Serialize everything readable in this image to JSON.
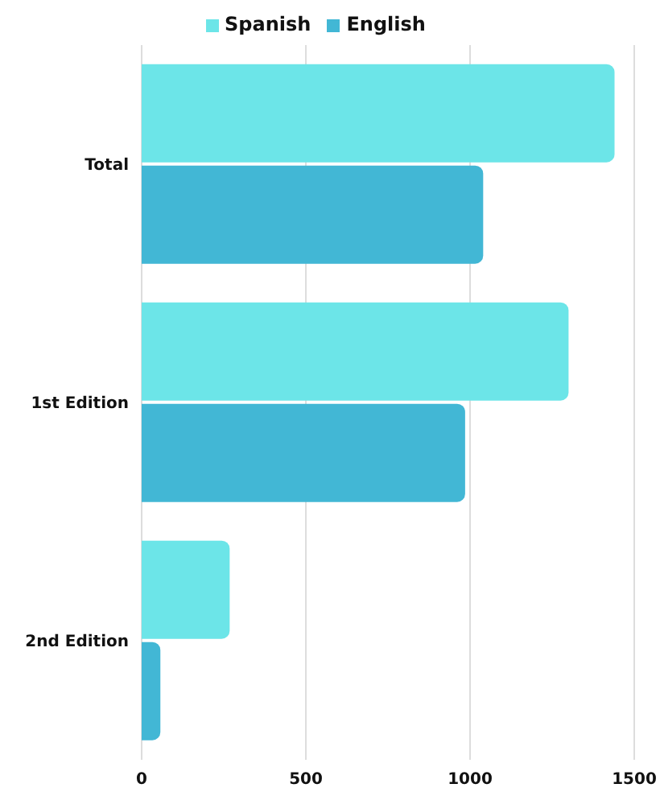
{
  "chart_data": {
    "type": "bar",
    "orientation": "horizontal",
    "categories": [
      "Total",
      "1st Edition",
      "2nd Edition"
    ],
    "series": [
      {
        "name": "Spanish",
        "color": "#6ce5e8",
        "values": [
          1440,
          1300,
          268
        ]
      },
      {
        "name": "English",
        "color": "#42b7d5",
        "values": [
          1040,
          985,
          57
        ]
      }
    ],
    "xlim": [
      0,
      1500
    ],
    "xticks": [
      0,
      500,
      1000,
      1500
    ],
    "grid": "x",
    "legend": "top"
  }
}
